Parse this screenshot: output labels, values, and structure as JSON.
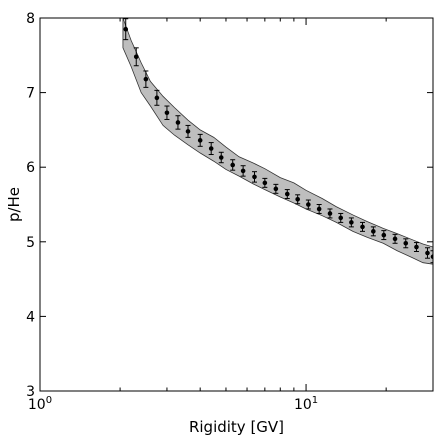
{
  "chart_data": {
    "type": "scatter",
    "xlabel": "Rigidity [GV]",
    "ylabel": "p/He",
    "xscale": "log",
    "xlim": [
      1,
      30
    ],
    "ylim": [
      3,
      8
    ],
    "x_ticks": [
      {
        "value": 1,
        "base": "10",
        "exp": "0"
      },
      {
        "value": 10,
        "base": "10",
        "exp": "1"
      }
    ],
    "y_ticks": [
      3,
      4,
      5,
      6,
      7,
      8
    ],
    "grid": false,
    "legend": "none",
    "colors": {
      "points": "#000000",
      "band_fill": "#bebebe",
      "band_edge": "#333333"
    },
    "series": [
      {
        "x": [
          2.1,
          2.3,
          2.5,
          2.75,
          3.0,
          3.3,
          3.6,
          4.0,
          4.4,
          4.8,
          5.3,
          5.8,
          6.4,
          7.0,
          7.7,
          8.5,
          9.3,
          10.2,
          11.2,
          12.3,
          13.5,
          14.8,
          16.3,
          17.9,
          19.6,
          21.6,
          23.7,
          26.0,
          28.6,
          30.0
        ],
        "y": [
          7.85,
          7.48,
          7.18,
          6.93,
          6.73,
          6.6,
          6.48,
          6.36,
          6.25,
          6.13,
          6.03,
          5.95,
          5.87,
          5.79,
          5.71,
          5.64,
          5.57,
          5.5,
          5.44,
          5.38,
          5.32,
          5.26,
          5.2,
          5.14,
          5.09,
          5.04,
          4.98,
          4.93,
          4.85,
          4.8
        ],
        "yerr": [
          0.14,
          0.12,
          0.11,
          0.1,
          0.09,
          0.09,
          0.08,
          0.08,
          0.08,
          0.07,
          0.07,
          0.07,
          0.07,
          0.06,
          0.06,
          0.06,
          0.06,
          0.06,
          0.06,
          0.06,
          0.06,
          0.06,
          0.06,
          0.06,
          0.06,
          0.06,
          0.06,
          0.06,
          0.07,
          0.08
        ]
      }
    ],
    "band": {
      "x": [
        2.05,
        2.2,
        2.4,
        2.6,
        2.9,
        3.2,
        3.6,
        4.0,
        4.5,
        5.0,
        5.6,
        6.3,
        7.0,
        8.0,
        9.0,
        10.0,
        11.5,
        13.0,
        15.0,
        17.0,
        19.5,
        22.0,
        25.0,
        27.5,
        30.0
      ],
      "upper": [
        8.0,
        7.7,
        7.4,
        7.15,
        6.95,
        6.8,
        6.63,
        6.5,
        6.4,
        6.27,
        6.14,
        6.06,
        5.98,
        5.86,
        5.79,
        5.69,
        5.58,
        5.47,
        5.36,
        5.27,
        5.18,
        5.11,
        5.03,
        4.97,
        4.93
      ],
      "lower": [
        7.6,
        7.35,
        7.0,
        6.82,
        6.56,
        6.43,
        6.3,
        6.19,
        6.08,
        5.97,
        5.88,
        5.78,
        5.7,
        5.6,
        5.52,
        5.44,
        5.35,
        5.26,
        5.14,
        5.06,
        4.98,
        4.88,
        4.79,
        4.72,
        4.7
      ]
    }
  }
}
